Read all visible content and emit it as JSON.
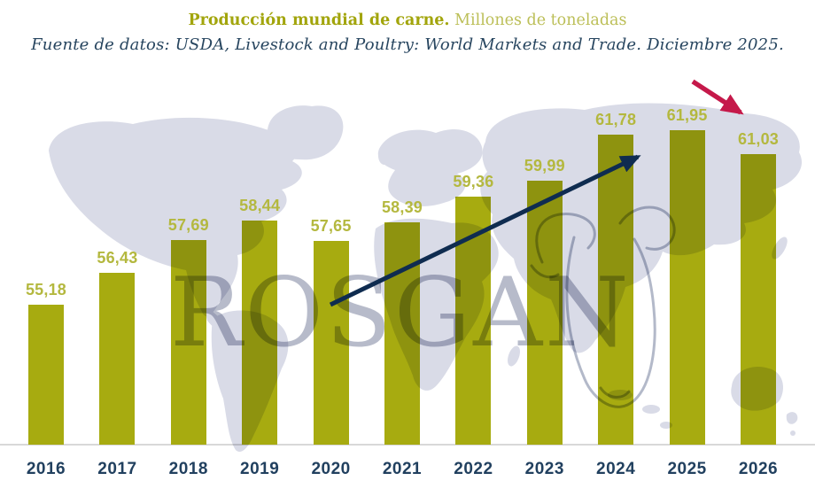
{
  "header": {
    "title_bold": "Producción mundial de carne.",
    "title_light": "Millones de toneladas",
    "source_line": "Fuente de datos: USDA, Livestock and Poultry: World Markets and Trade. Diciembre 2025."
  },
  "watermark": {
    "brand": "ROSGAN"
  },
  "colors": {
    "bar": "#a7ab10",
    "value_label": "#b4b83f",
    "title_accent": "#a2a50c",
    "title_units": "#bcbf58",
    "source_text": "#27455f",
    "year_label": "#21405f",
    "axis_line": "#d8d8d8",
    "map_silhouette": "#d9dbe7",
    "watermark_text": "#b7bbca",
    "cattle_outline": "#b3b9c9",
    "uptrend_arrow": "#0f2c50",
    "decline_arrow": "#c5194a"
  },
  "chart_data": {
    "type": "bar",
    "title": "Producción mundial de carne.",
    "subtitle": "Millones de toneladas",
    "source": "Fuente de datos: USDA, Livestock and Poultry: World Markets and Trade. Diciembre 2025.",
    "categories": [
      "2016",
      "2017",
      "2018",
      "2019",
      "2020",
      "2021",
      "2022",
      "2023",
      "2024",
      "2025",
      "2026"
    ],
    "values": [
      55.18,
      56.43,
      57.69,
      58.44,
      57.65,
      58.39,
      59.36,
      59.99,
      61.78,
      61.95,
      61.03
    ],
    "value_labels": [
      "55,18",
      "56,43",
      "57,69",
      "58,44",
      "57,65",
      "58,39",
      "59,36",
      "59,99",
      "61,78",
      "61,95",
      "61,03"
    ],
    "unit": "Millones de toneladas",
    "ylim": [
      49.75,
      63.5
    ],
    "grid": false,
    "legend": false,
    "annotations": [
      {
        "id": "uptrend-arrow",
        "shape": "arrow",
        "color": "#0f2c50"
      },
      {
        "id": "decline-arrow",
        "shape": "arrow",
        "color": "#c5194a"
      }
    ]
  }
}
